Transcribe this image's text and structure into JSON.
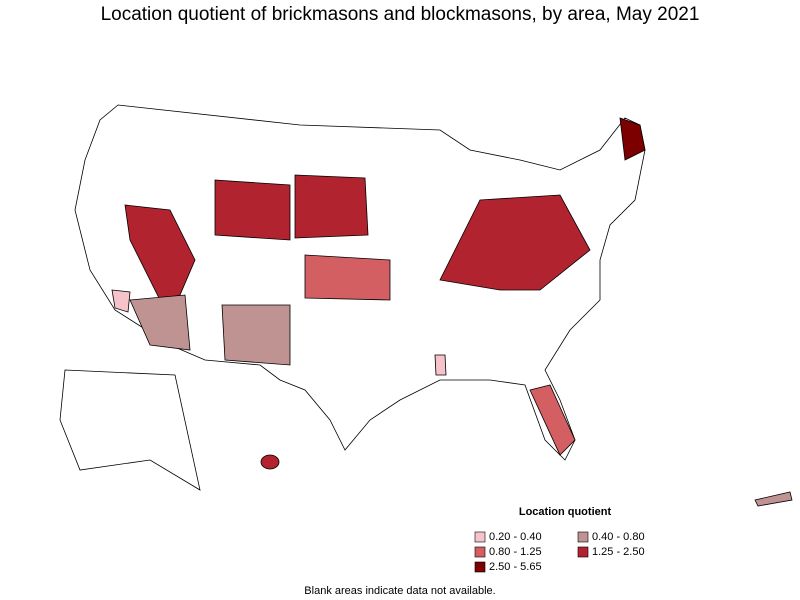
{
  "title": "Location quotient of brickmasons and blockmasons, by area, May 2021",
  "legend": {
    "title": "Location quotient",
    "items": [
      {
        "label": "0.20 - 0.40",
        "color": "#f7c3cb"
      },
      {
        "label": "0.40 - 0.80",
        "color": "#c09393"
      },
      {
        "label": "0.80 - 1.25",
        "color": "#d45f63"
      },
      {
        "label": "1.25 - 2.50",
        "color": "#b1232e"
      },
      {
        "label": "2.50 - 5.65",
        "color": "#7d0000"
      }
    ]
  },
  "note": "Blank areas indicate data not available."
}
